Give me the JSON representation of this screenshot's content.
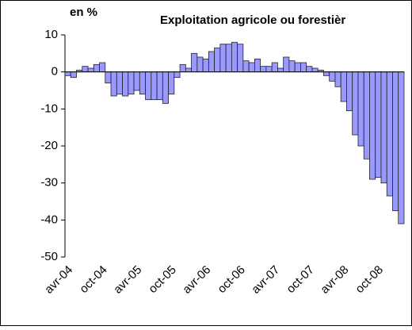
{
  "chart_data": {
    "type": "bar",
    "title": "Exploitation agricole ou forestièr",
    "ylabel": "en %",
    "categories": [
      "avr-04",
      null,
      null,
      null,
      null,
      null,
      "oct-04",
      null,
      null,
      null,
      null,
      null,
      "avr-05",
      null,
      null,
      null,
      null,
      null,
      "oct-05",
      null,
      null,
      null,
      null,
      null,
      "avr-06",
      null,
      null,
      null,
      null,
      null,
      "oct-06",
      null,
      null,
      null,
      null,
      null,
      "avr-07",
      null,
      null,
      null,
      null,
      null,
      "oct-07",
      null,
      null,
      null,
      null,
      null,
      "avr-08",
      null,
      null,
      null,
      null,
      null,
      "oct-08",
      null,
      null,
      null,
      null
    ],
    "values": [
      -1,
      -1.5,
      0.5,
      1.5,
      1,
      2,
      2.5,
      -3,
      -6.5,
      -6,
      -6.5,
      -6,
      -5,
      -6,
      -7.5,
      -7.5,
      -7.5,
      -8.5,
      -6,
      -1.5,
      2,
      1,
      5,
      4,
      3.5,
      5.5,
      6.5,
      7.5,
      7.5,
      8,
      7.5,
      3,
      2.5,
      3.5,
      1.5,
      1.5,
      2.5,
      1,
      4,
      3,
      2.5,
      2.5,
      1.5,
      1,
      0.5,
      -1,
      -2.5,
      -4,
      -8,
      -10.5,
      -17,
      -20,
      -23.5,
      -29,
      -28.5,
      -30,
      -33.5,
      -37.5,
      -41
    ],
    "color": "#9999ff",
    "ylim": [
      -50,
      10
    ],
    "yticks": [
      -50,
      -40,
      -30,
      -20,
      -10,
      0,
      10
    ]
  }
}
